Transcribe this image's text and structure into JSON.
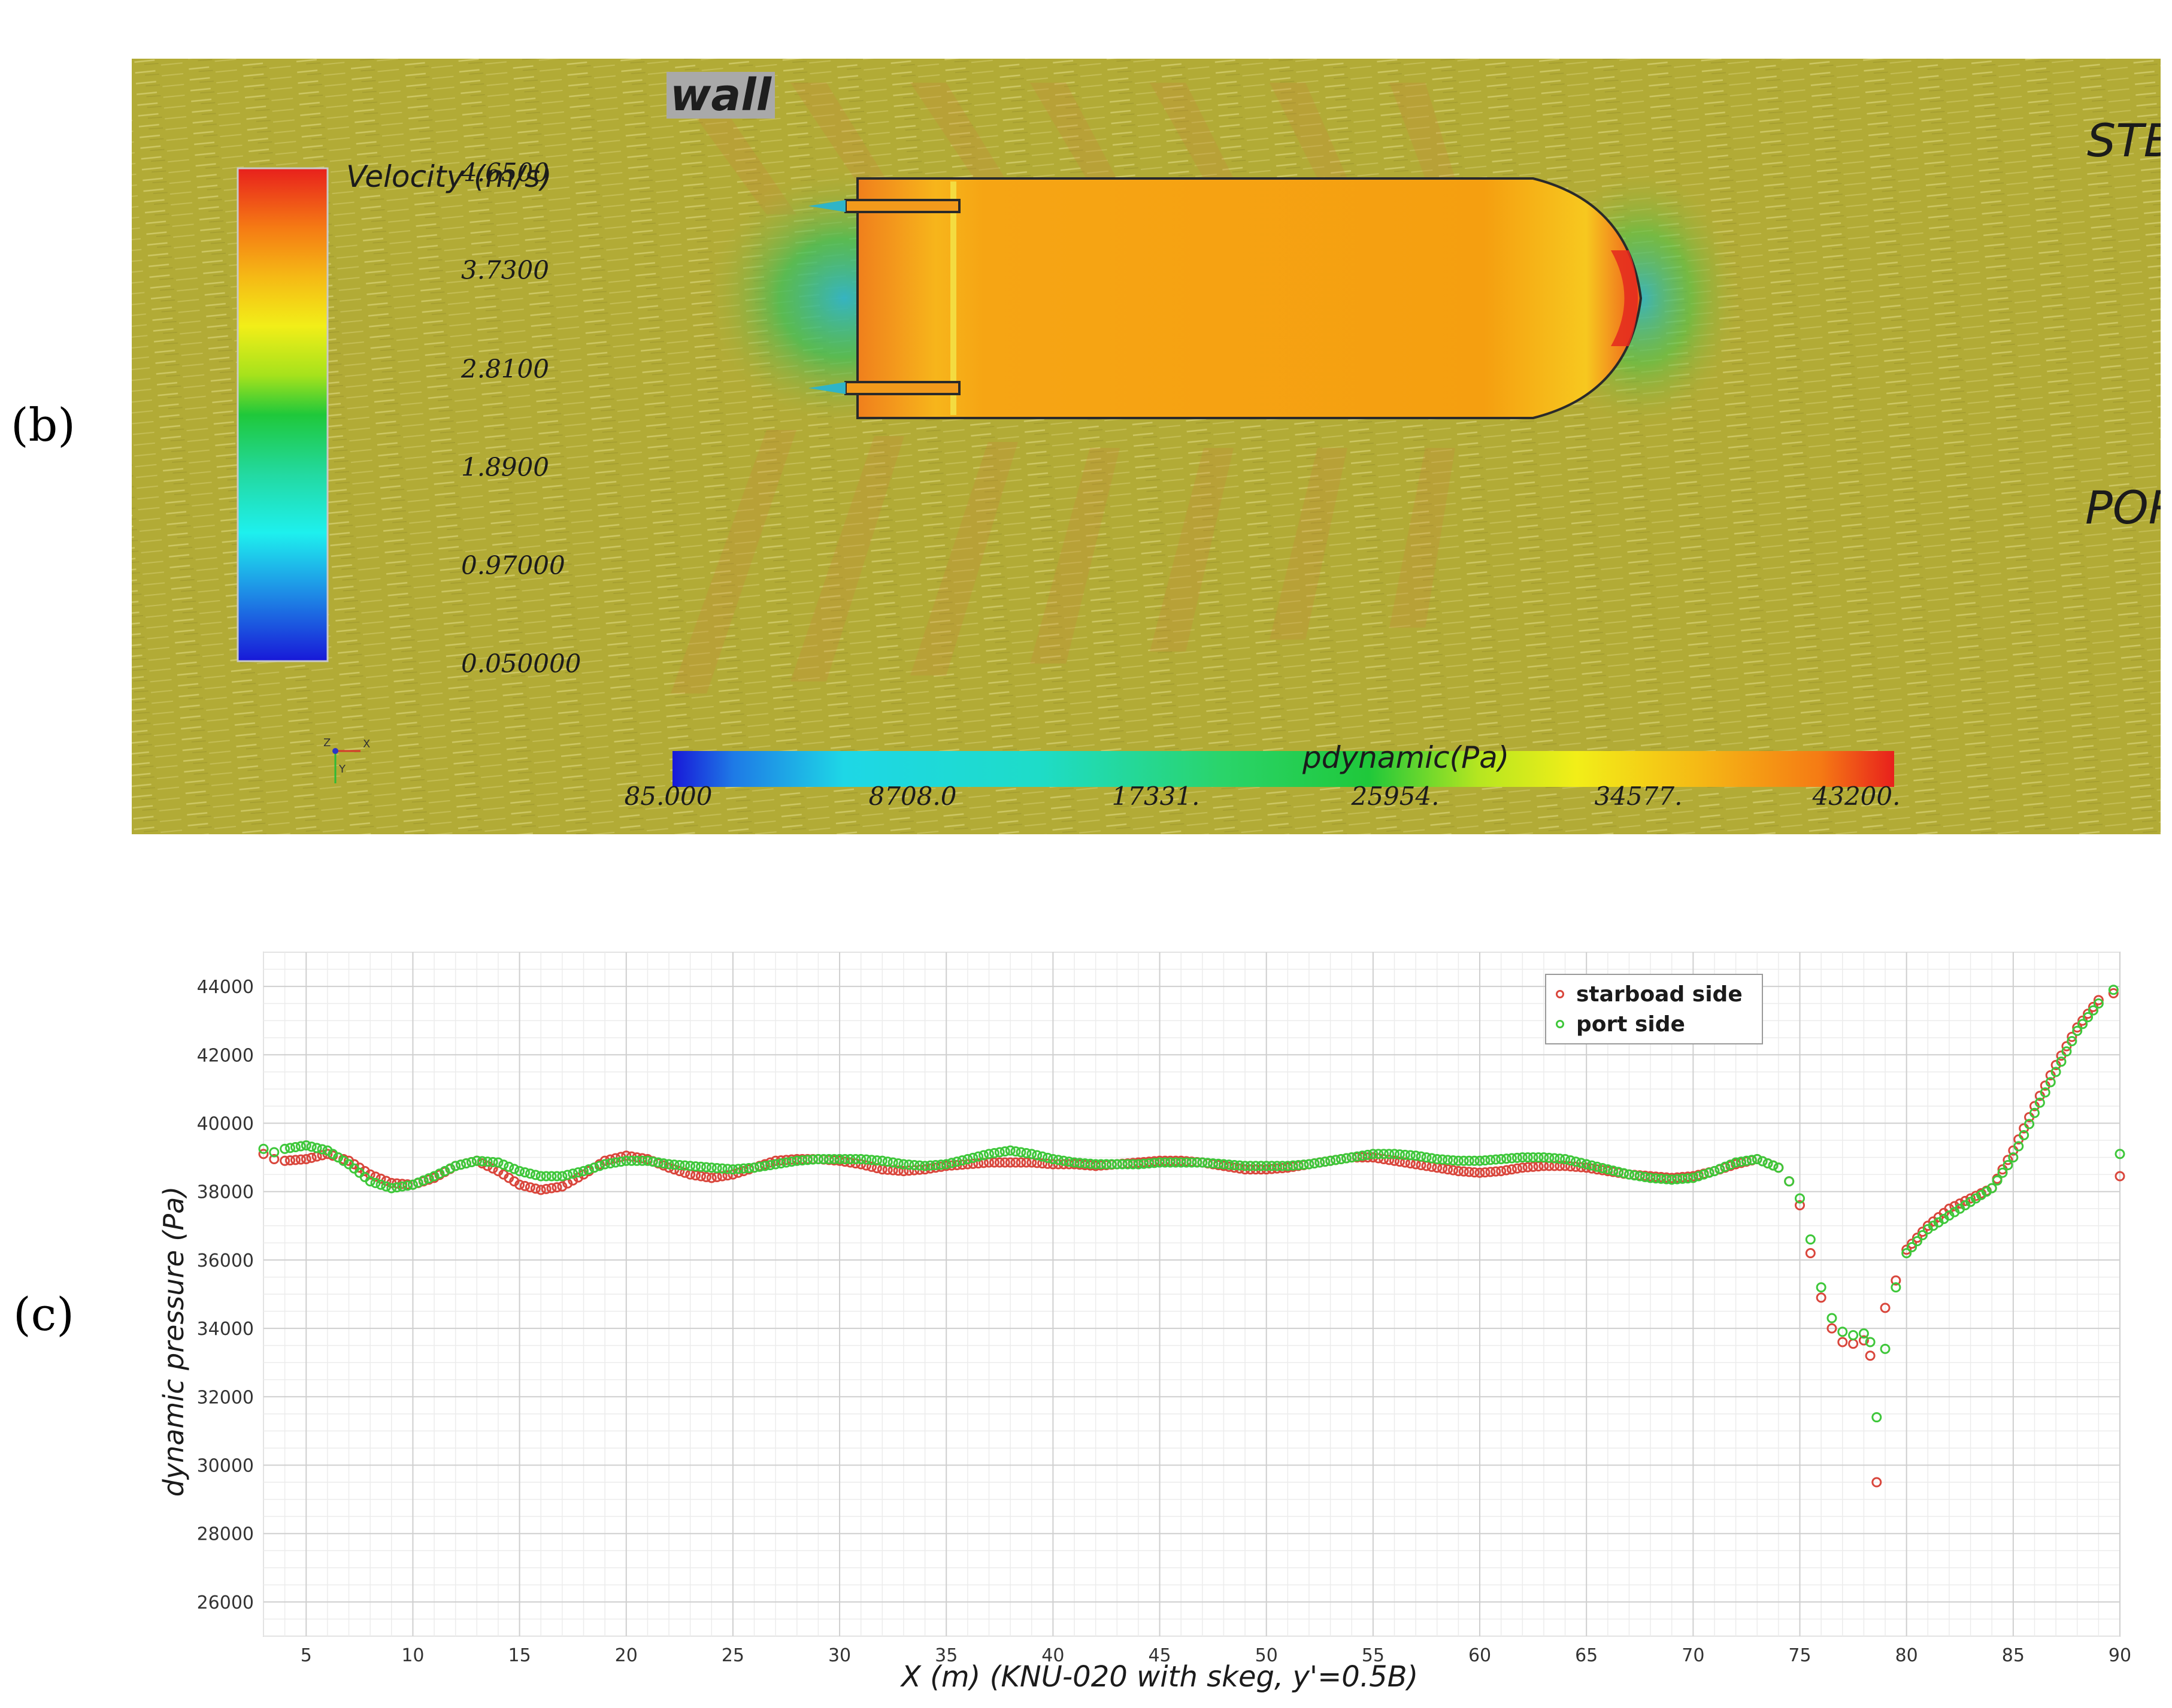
{
  "panels": {
    "b": {
      "label": "(b)"
    },
    "c": {
      "label": "(c)"
    }
  },
  "flow_field": {
    "wall_label": "wall",
    "stbd_label": "STBD",
    "port_label": "PORT",
    "axis_triad": [
      "Z",
      "X",
      "Y"
    ],
    "velocity_legend": {
      "title": "Velocity (m/s)",
      "ticks": [
        "4.6500",
        "3.7300",
        "2.8100",
        "1.8900",
        "0.97000",
        "0.050000"
      ]
    },
    "pdynamic_legend": {
      "title": "pdynamic(Pa)",
      "ticks": [
        "85.000",
        "8708.0",
        "17331.",
        "25954.",
        "34577.",
        "43200."
      ]
    },
    "colors": {
      "background": "#b2ab36",
      "hull": "#f5a00e",
      "bow_high": "#e4281e",
      "wake_low": "#2fb4c8"
    }
  },
  "chart_data": {
    "type": "scatter",
    "xlabel": "X (m)   (KNU-020 with skeg,  y'=0.5B)",
    "ylabel": "dynamic pressure (Pa)",
    "xlim": [
      3,
      90
    ],
    "ylim": [
      25000,
      45000
    ],
    "x_ticks": [
      5,
      10,
      15,
      20,
      25,
      30,
      35,
      40,
      45,
      50,
      55,
      60,
      65,
      70,
      75,
      80,
      85,
      90
    ],
    "y_ticks": [
      26000,
      28000,
      30000,
      32000,
      34000,
      36000,
      38000,
      40000,
      42000,
      44000
    ],
    "grid": true,
    "legend_position": "top-right",
    "series": [
      {
        "name": "starboad side",
        "color": "#d9463c",
        "points": [
          [
            3.0,
            39100
          ],
          [
            3.5,
            38950
          ],
          [
            4,
            38900
          ],
          [
            5,
            38950
          ],
          [
            6,
            39100
          ],
          [
            7,
            38900
          ],
          [
            8,
            38500
          ],
          [
            9,
            38250
          ],
          [
            10,
            38200
          ],
          [
            11,
            38400
          ],
          [
            12,
            38750
          ],
          [
            13,
            38900
          ],
          [
            14,
            38600
          ],
          [
            15,
            38200
          ],
          [
            16,
            38050
          ],
          [
            17,
            38150
          ],
          [
            18,
            38500
          ],
          [
            19,
            38900
          ],
          [
            20,
            39050
          ],
          [
            21,
            38950
          ],
          [
            22,
            38700
          ],
          [
            23,
            38500
          ],
          [
            24,
            38400
          ],
          [
            25,
            38500
          ],
          [
            26,
            38700
          ],
          [
            27,
            38900
          ],
          [
            28,
            38950
          ],
          [
            29,
            38950
          ],
          [
            30,
            38900
          ],
          [
            31,
            38800
          ],
          [
            32,
            38650
          ],
          [
            33,
            38600
          ],
          [
            34,
            38650
          ],
          [
            35,
            38750
          ],
          [
            36,
            38800
          ],
          [
            37,
            38850
          ],
          [
            38,
            38850
          ],
          [
            39,
            38850
          ],
          [
            40,
            38800
          ],
          [
            41,
            38800
          ],
          [
            42,
            38750
          ],
          [
            43,
            38800
          ],
          [
            44,
            38850
          ],
          [
            45,
            38900
          ],
          [
            46,
            38900
          ],
          [
            47,
            38850
          ],
          [
            48,
            38750
          ],
          [
            49,
            38650
          ],
          [
            50,
            38650
          ],
          [
            51,
            38700
          ],
          [
            52,
            38800
          ],
          [
            53,
            38900
          ],
          [
            54,
            39000
          ],
          [
            55,
            39000
          ],
          [
            56,
            38900
          ],
          [
            57,
            38800
          ],
          [
            58,
            38700
          ],
          [
            59,
            38600
          ],
          [
            60,
            38550
          ],
          [
            61,
            38600
          ],
          [
            62,
            38700
          ],
          [
            63,
            38750
          ],
          [
            64,
            38750
          ],
          [
            65,
            38700
          ],
          [
            66,
            38600
          ],
          [
            67,
            38500
          ],
          [
            68,
            38450
          ],
          [
            69,
            38400
          ],
          [
            70,
            38450
          ],
          [
            71,
            38600
          ],
          [
            72,
            38800
          ],
          [
            73,
            38950
          ],
          [
            74,
            38700
          ],
          [
            74.5,
            38300
          ],
          [
            75,
            37600
          ],
          [
            75.5,
            36200
          ],
          [
            76,
            34900
          ],
          [
            76.5,
            34000
          ],
          [
            77,
            33600
          ],
          [
            77.5,
            33550
          ],
          [
            78,
            33650
          ],
          [
            78.3,
            33200
          ],
          [
            78.6,
            29500
          ],
          [
            79,
            34600
          ],
          [
            79.5,
            35400
          ],
          [
            80,
            36300
          ],
          [
            81,
            37000
          ],
          [
            82,
            37500
          ],
          [
            83,
            37800
          ],
          [
            84,
            38100
          ],
          [
            85,
            39200
          ],
          [
            86,
            40500
          ],
          [
            87,
            41700
          ],
          [
            88,
            42800
          ],
          [
            89,
            43600
          ],
          [
            89.7,
            43800
          ],
          [
            90,
            38450
          ]
        ]
      },
      {
        "name": "port side",
        "color": "#3ec73a",
        "points": [
          [
            3.0,
            39250
          ],
          [
            3.5,
            39150
          ],
          [
            4,
            39250
          ],
          [
            5,
            39350
          ],
          [
            6,
            39200
          ],
          [
            7,
            38800
          ],
          [
            8,
            38300
          ],
          [
            9,
            38100
          ],
          [
            10,
            38200
          ],
          [
            11,
            38450
          ],
          [
            12,
            38750
          ],
          [
            13,
            38900
          ],
          [
            14,
            38850
          ],
          [
            15,
            38600
          ],
          [
            16,
            38450
          ],
          [
            17,
            38450
          ],
          [
            18,
            38600
          ],
          [
            19,
            38800
          ],
          [
            20,
            38900
          ],
          [
            21,
            38900
          ],
          [
            22,
            38800
          ],
          [
            23,
            38750
          ],
          [
            24,
            38700
          ],
          [
            25,
            38650
          ],
          [
            26,
            38700
          ],
          [
            27,
            38800
          ],
          [
            28,
            38900
          ],
          [
            29,
            38950
          ],
          [
            30,
            38950
          ],
          [
            31,
            38950
          ],
          [
            32,
            38900
          ],
          [
            33,
            38800
          ],
          [
            34,
            38750
          ],
          [
            35,
            38800
          ],
          [
            36,
            38950
          ],
          [
            37,
            39100
          ],
          [
            38,
            39200
          ],
          [
            39,
            39100
          ],
          [
            40,
            38950
          ],
          [
            41,
            38850
          ],
          [
            42,
            38800
          ],
          [
            43,
            38800
          ],
          [
            44,
            38800
          ],
          [
            45,
            38850
          ],
          [
            46,
            38850
          ],
          [
            47,
            38850
          ],
          [
            48,
            38800
          ],
          [
            49,
            38750
          ],
          [
            50,
            38750
          ],
          [
            51,
            38750
          ],
          [
            52,
            38800
          ],
          [
            53,
            38900
          ],
          [
            54,
            39000
          ],
          [
            55,
            39100
          ],
          [
            56,
            39100
          ],
          [
            57,
            39050
          ],
          [
            58,
            38950
          ],
          [
            59,
            38900
          ],
          [
            60,
            38900
          ],
          [
            61,
            38950
          ],
          [
            62,
            39000
          ],
          [
            63,
            39000
          ],
          [
            64,
            38950
          ],
          [
            65,
            38800
          ],
          [
            66,
            38650
          ],
          [
            67,
            38500
          ],
          [
            68,
            38400
          ],
          [
            69,
            38350
          ],
          [
            70,
            38400
          ],
          [
            71,
            38600
          ],
          [
            72,
            38850
          ],
          [
            73,
            38950
          ],
          [
            74,
            38700
          ],
          [
            74.5,
            38300
          ],
          [
            75,
            37800
          ],
          [
            75.5,
            36600
          ],
          [
            76,
            35200
          ],
          [
            76.5,
            34300
          ],
          [
            77,
            33900
          ],
          [
            77.5,
            33800
          ],
          [
            78,
            33850
          ],
          [
            78.3,
            33600
          ],
          [
            78.6,
            31400
          ],
          [
            79,
            33400
          ],
          [
            79.5,
            35200
          ],
          [
            80,
            36200
          ],
          [
            81,
            36900
          ],
          [
            82,
            37300
          ],
          [
            83,
            37700
          ],
          [
            84,
            38100
          ],
          [
            85,
            39000
          ],
          [
            86,
            40300
          ],
          [
            87,
            41500
          ],
          [
            88,
            42700
          ],
          [
            89,
            43500
          ],
          [
            89.7,
            43900
          ],
          [
            90,
            39100
          ]
        ]
      }
    ]
  }
}
